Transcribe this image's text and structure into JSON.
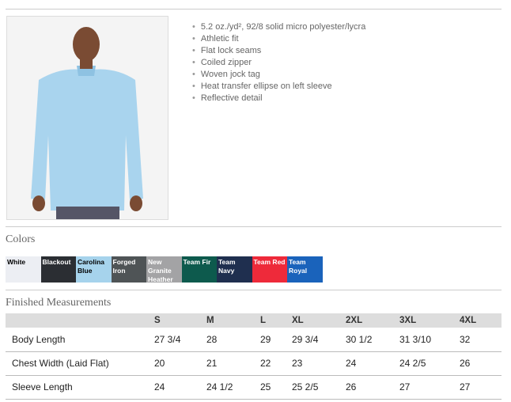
{
  "features": [
    "5.2 oz./yd², 92/8 solid micro polyester/lycra",
    "Athletic fit",
    "Flat lock seams",
    "Coiled zipper",
    "Woven jock tag",
    "Heat transfer ellipse on left sleeve",
    "Reflective detail"
  ],
  "colors_title": "Colors",
  "colors": [
    {
      "name": "White",
      "hex": "#eceef3",
      "text": "#000"
    },
    {
      "name": "Blackout",
      "hex": "#2b2e33",
      "text": "#fff"
    },
    {
      "name": "Carolina Blue",
      "hex": "#a6d3ec",
      "text": "#000"
    },
    {
      "name": "Forged Iron",
      "hex": "#4f5456",
      "text": "#fff"
    },
    {
      "name": "New Granite Heather",
      "hex": "#a3a3a5",
      "text": "#fff"
    },
    {
      "name": "Team Fir",
      "hex": "#0d5a4d",
      "text": "#fff"
    },
    {
      "name": "Team Navy",
      "hex": "#1f2f4f",
      "text": "#fff"
    },
    {
      "name": "Team Red",
      "hex": "#ee2a3a",
      "text": "#fff"
    },
    {
      "name": "Team Royal",
      "hex": "#1a63bb",
      "text": "#fff"
    }
  ],
  "measurements_title": "Finished Measurements",
  "measurements": {
    "headers": [
      "",
      "S",
      "M",
      "L",
      "XL",
      "2XL",
      "3XL",
      "4XL"
    ],
    "rows": [
      [
        "Body Length",
        "27 3/4",
        "28",
        "29",
        "29 3/4",
        "30 1/2",
        "31 3/10",
        "32"
      ],
      [
        "Chest Width (Laid Flat)",
        "20",
        "21",
        "22",
        "23",
        "24",
        "24 2/5",
        "26"
      ],
      [
        "Sleeve Length",
        "24",
        "24 1/2",
        "25",
        "25 2/5",
        "26",
        "27",
        "27"
      ]
    ]
  }
}
